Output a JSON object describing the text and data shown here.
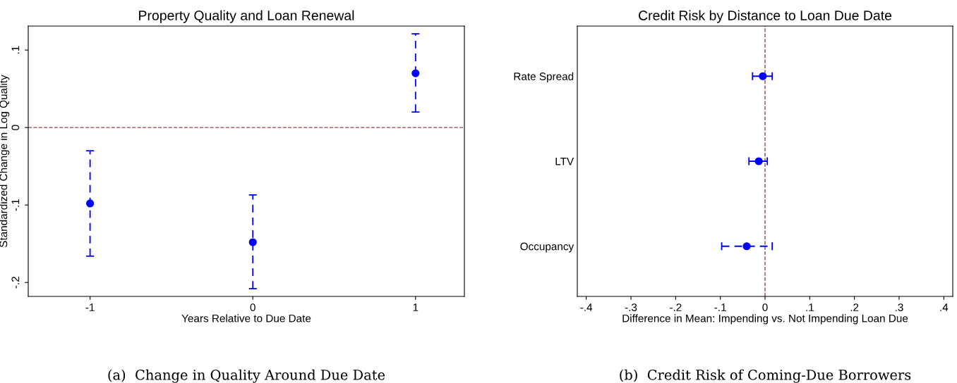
{
  "chart_data": [
    {
      "type": "scatter",
      "title": "Property Quality and Loan Renewal",
      "xlabel": "Years Relative to Due Date",
      "ylabel": "Standardized Change in Log Quality",
      "x": [
        -1,
        0,
        1
      ],
      "xlim": [
        -1.38,
        1.3
      ],
      "xticks": [
        -1,
        0,
        1
      ],
      "ylim": [
        -0.218,
        0.131
      ],
      "yticks": [
        {
          "value": -0.2,
          "label": "-.2"
        },
        {
          "value": -0.1,
          "label": "-.1"
        },
        {
          "value": 0,
          "label": "0"
        },
        {
          "value": 0.1,
          "label": ".1"
        }
      ],
      "series": [
        {
          "color": "#0000ff",
          "values": [
            -0.098,
            -0.148,
            0.07
          ],
          "errors": [
            [
              -0.166,
              -0.03
            ],
            [
              -0.208,
              -0.087
            ],
            [
              0.02,
              0.121
            ]
          ]
        }
      ],
      "marker": "circle",
      "line_style": "dashed",
      "grid": false,
      "legend": false,
      "ref_lines": [
        {
          "axis": "y",
          "value": 0,
          "label": null,
          "color": "#8b4a4a",
          "line_style": "dashed"
        }
      ],
      "annotations": [
        "(a)  Change in Quality Around Due Date"
      ]
    },
    {
      "type": "scatter",
      "orientation": "horizontal",
      "title": "Credit Risk by Distance to Loan Due Date",
      "xlabel": "Difference in Mean: Impending vs. Not Impending Loan Due",
      "categories": [
        "Rate Spread",
        "LTV",
        "Occupancy"
      ],
      "xlim": [
        -0.42,
        0.42
      ],
      "xticks": [
        {
          "value": -0.4,
          "label": "-.4"
        },
        {
          "value": -0.3,
          "label": "-.3"
        },
        {
          "value": -0.2,
          "label": "-.2"
        },
        {
          "value": -0.1,
          "label": "-.1"
        },
        {
          "value": 0,
          "label": "0"
        },
        {
          "value": 0.1,
          "label": ".1"
        },
        {
          "value": 0.2,
          "label": ".2"
        },
        {
          "value": 0.3,
          "label": ".3"
        },
        {
          "value": 0.4,
          "label": ".4"
        }
      ],
      "series": [
        {
          "color": "#0000ff",
          "values": [
            -0.005,
            -0.014,
            -0.041
          ],
          "errors": [
            [
              -0.028,
              0.016
            ],
            [
              -0.036,
              0.005
            ],
            [
              -0.097,
              0.016
            ]
          ]
        }
      ],
      "marker": "circle",
      "line_style": "dashed",
      "grid": false,
      "legend": false,
      "ref_lines": [
        {
          "axis": "x",
          "value": 0,
          "label": null,
          "color": "#8b4a4a",
          "line_style": "dashed"
        }
      ],
      "annotations": [
        "(b)  Credit Risk of Coming-Due Borrowers"
      ]
    }
  ]
}
